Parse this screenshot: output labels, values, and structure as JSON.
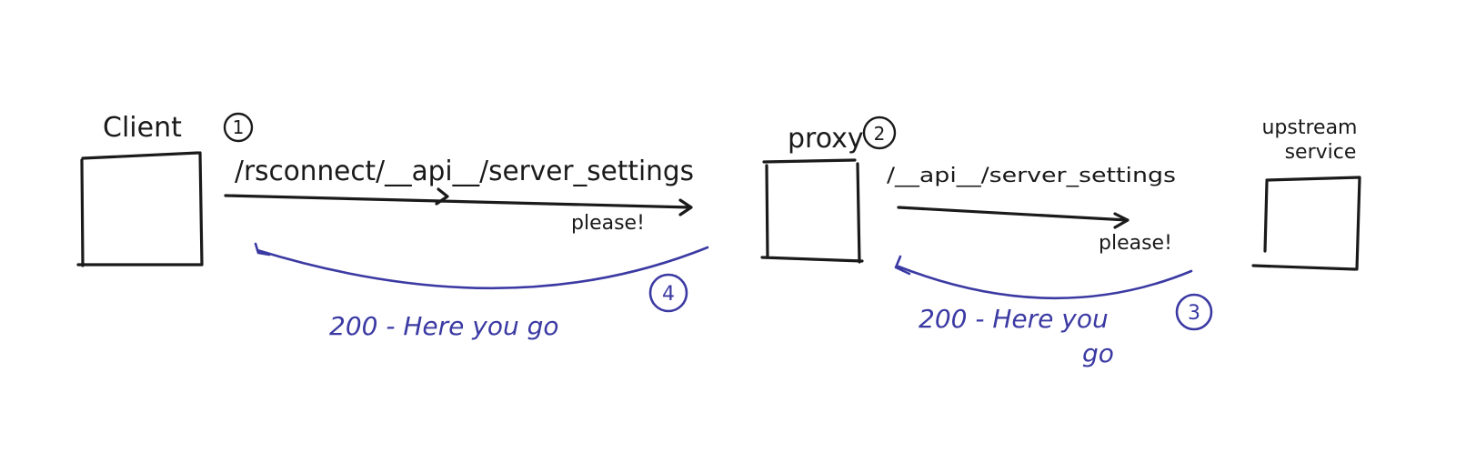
{
  "nodes": {
    "client": {
      "label": "Client",
      "step": "1"
    },
    "proxy": {
      "label": "proxy",
      "step": "2"
    },
    "upstream": {
      "label_line1": "upstream",
      "label_line2": "service"
    }
  },
  "requests": {
    "client_to_proxy": {
      "path": "/rsconnect/__api__/server_settings",
      "note": "please!"
    },
    "proxy_to_upstream": {
      "path": "/__api__/server_settings",
      "note": "please!"
    }
  },
  "responses": {
    "upstream_to_proxy": {
      "step": "3",
      "line1": "200 - Here you",
      "line2": "go"
    },
    "proxy_to_client": {
      "step": "4",
      "text": "200 - Here you go"
    }
  },
  "colors": {
    "ink": "#1a1a1a",
    "response_ink": "#3b3aa3"
  }
}
